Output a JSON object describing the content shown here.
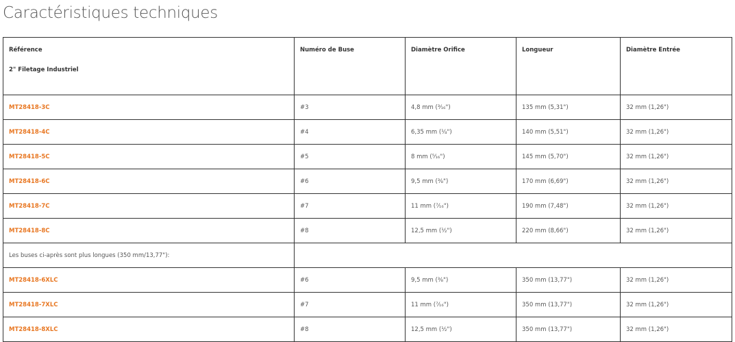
{
  "title": "Caractéristiques techniques",
  "headers": {
    "reference": "Référence",
    "reference_sub": "2\" Filetage Industriel",
    "buse": "Numéro de Buse",
    "orifice": "Diamètre Orifice",
    "longueur": "Longueur",
    "entree": "Diamètre Entrée"
  },
  "rows": [
    {
      "ref": "MT28418-3C",
      "buse": "#3",
      "orifice": "4,8 mm (³⁄₁₆\")",
      "longueur": "135 mm (5,31\")",
      "entree": "32 mm (1,26\")"
    },
    {
      "ref": "MT28418-4C",
      "buse": "#4",
      "orifice": "6,35 mm (¹⁄₄\")",
      "longueur": "140 mm (5,51\")",
      "entree": "32 mm (1,26\")"
    },
    {
      "ref": "MT28418-5C",
      "buse": "#5",
      "orifice": "8 mm (⁵⁄₁₆\")",
      "longueur": "145 mm (5,70\")",
      "entree": "32 mm (1,26\")"
    },
    {
      "ref": "MT28418-6C",
      "buse": "#6",
      "orifice": "9,5 mm (³⁄₈\")",
      "longueur": "170 mm (6,69\")",
      "entree": "32 mm (1,26\")"
    },
    {
      "ref": "MT28418-7C",
      "buse": "#7",
      "orifice": "11 mm (⁷⁄₁₆\")",
      "longueur": "190 mm (7,48\")",
      "entree": "32 mm (1,26\")"
    },
    {
      "ref": "MT28418-8C",
      "buse": "#8",
      "orifice": "12,5 mm (¹⁄₂\")",
      "longueur": "220 mm (8,66\")",
      "entree": "32 mm (1,26\")"
    }
  ],
  "note": "Les buses ci-après sont plus longues (350 mm/13,77\"):",
  "rows_long": [
    {
      "ref": "MT28418-6XLC",
      "buse": "#6",
      "orifice": "9,5 mm (³⁄₈\")",
      "longueur": "350 mm (13,77\")",
      "entree": "32 mm (1,26\")"
    },
    {
      "ref": "MT28418-7XLC",
      "buse": "#7",
      "orifice": "11 mm (⁷⁄₁₆\")",
      "longueur": "350 mm (13,77\")",
      "entree": "32 mm (1,26\")"
    },
    {
      "ref": "MT28418-8XLC",
      "buse": "#8",
      "orifice": "12,5 mm (¹⁄₂\")",
      "longueur": "350 mm (13,77\")",
      "entree": "32 mm (1,26\")"
    }
  ],
  "colors": {
    "link": "#e87722"
  }
}
